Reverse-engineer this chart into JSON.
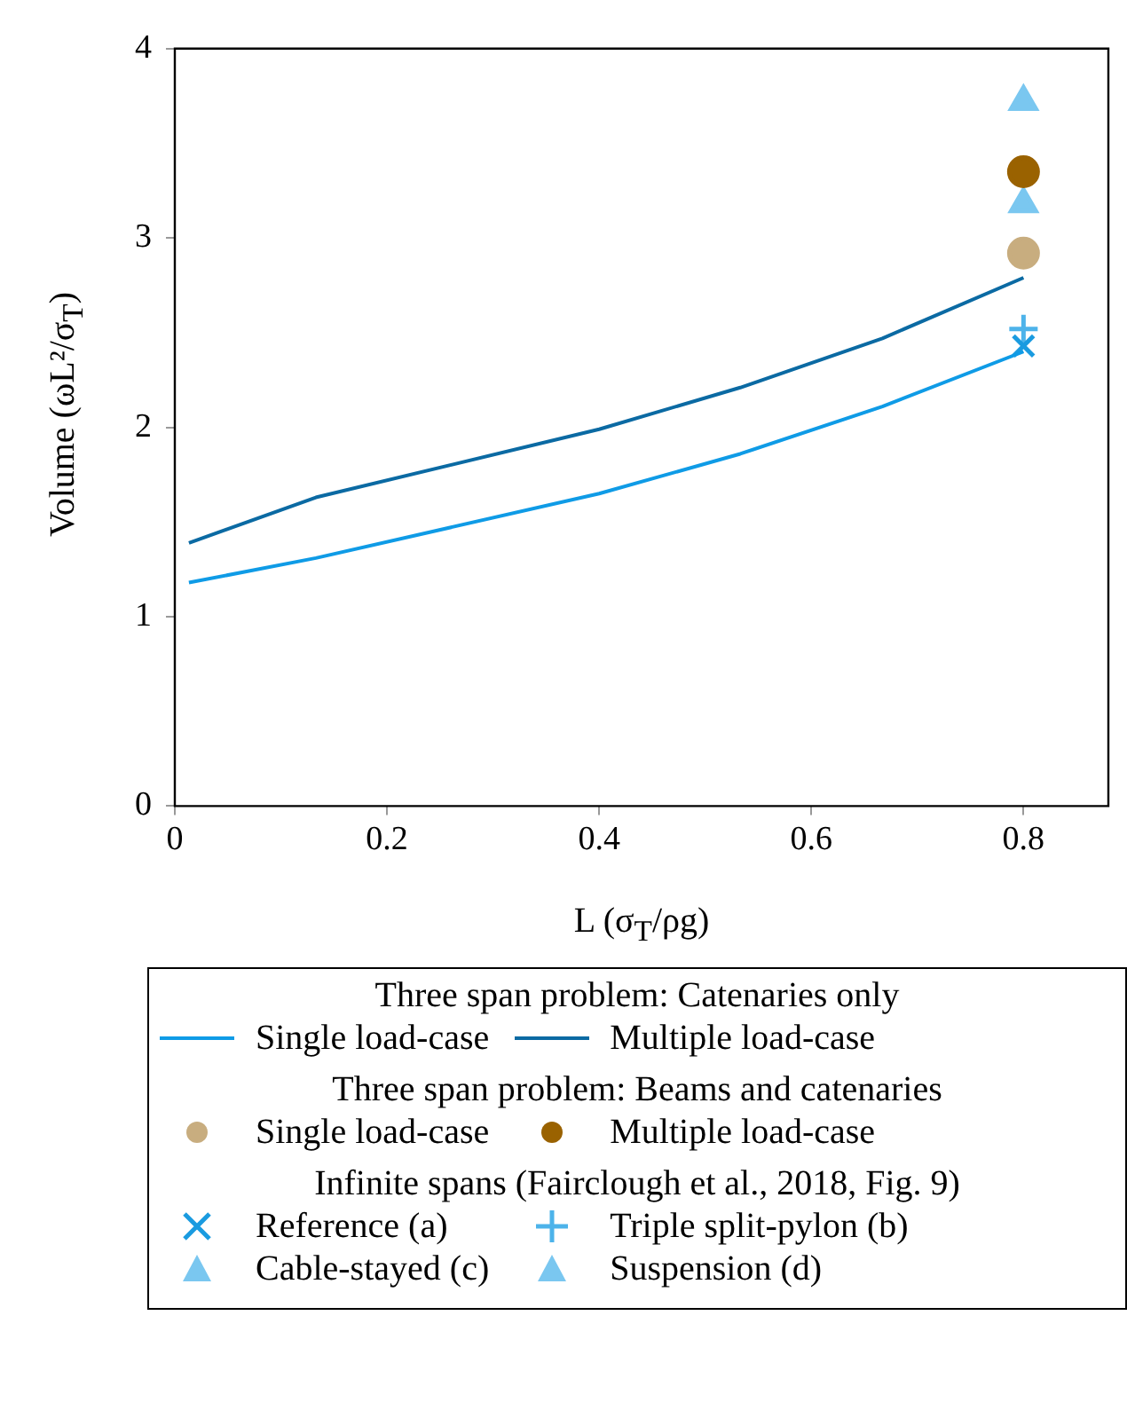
{
  "chart_data": {
    "type": "line",
    "xlabel": "L (σ$_{T}$/ρg)",
    "ylabel": "Volume (ωL²/σ$_{T}$)",
    "xlim": [
      0,
      0.88
    ],
    "ylim": [
      0,
      4
    ],
    "xticks": [
      0,
      0.2,
      0.4,
      0.6,
      0.8
    ],
    "yticks": [
      0,
      1,
      2,
      3,
      4
    ],
    "grid": false,
    "legend": "bottom",
    "legend_title": [
      "Three span problem: Catenaries only",
      "Three span problem: Beams and catenaries",
      "Infinite spans (Fairclough et al., 2018, Fig. 9)"
    ],
    "series": [
      {
        "name": "Single load-case",
        "marker": "none",
        "color": "#0f9be6",
        "x": [
          0.0133,
          0.133,
          0.4,
          0.533,
          0.667,
          0.8
        ],
        "values": [
          1.18,
          1.31,
          1.65,
          1.86,
          2.11,
          2.4
        ]
      },
      {
        "name": "Multiple load-case",
        "marker": "none",
        "color": "#0b6aa3",
        "x": [
          0.0133,
          0.133,
          0.4,
          0.533,
          0.667,
          0.8
        ],
        "values": [
          1.39,
          1.63,
          1.99,
          2.21,
          2.47,
          2.79
        ]
      },
      {
        "name": "Single load-case",
        "type": "scatter",
        "marker": "circle",
        "color": "#c8ad7f",
        "x": [
          0.8
        ],
        "values": [
          2.92
        ]
      },
      {
        "name": "Multiple load-case",
        "type": "scatter",
        "marker": "circle",
        "color": "#9a6200",
        "x": [
          0.8
        ],
        "values": [
          3.35
        ]
      },
      {
        "name": "Reference (a)",
        "type": "scatter",
        "marker": "x",
        "color": "#1a9be0",
        "x": [
          0.8
        ],
        "values": [
          2.43
        ]
      },
      {
        "name": "Triple split-pylon (b)",
        "type": "scatter",
        "marker": "plus",
        "color": "#4db3ea",
        "x": [
          0.8
        ],
        "values": [
          2.52
        ]
      },
      {
        "name": "Cable-stayed (c)",
        "type": "scatter",
        "marker": "triangle",
        "color": "#7ac7f0",
        "x": [
          0.8
        ],
        "values": [
          3.18
        ]
      },
      {
        "name": "Suspension (d)",
        "type": "scatter",
        "marker": "triangle",
        "color": "#7ac7f0",
        "x": [
          0.8
        ],
        "values": [
          3.72
        ]
      }
    ]
  }
}
